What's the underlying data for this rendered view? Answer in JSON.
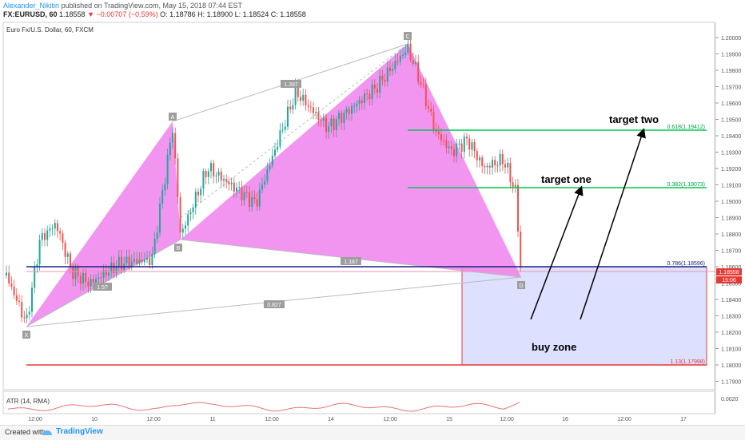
{
  "header": {
    "author": "Alexander_Nikitin",
    "published": "published on TradingView.com, May 15, 2018 07:44 EST",
    "symbol": "FX:EURUSD, 60",
    "last": "1.18558",
    "change": "−0.00707 (−0.59%)",
    "ohlc": "O: 1.18786 H: 1.18900 L: 1.18524 C: 1.18558"
  },
  "pane": {
    "title": "Euro Fx/U.S. Dollar, 60, FXCM",
    "atr_title": "ATR (14, RMA)",
    "atr_axis_label": "0.0020"
  },
  "price_axis": {
    "ticks": [
      "1.20000",
      "1.19900",
      "1.19800",
      "1.19700",
      "1.19600",
      "1.19500",
      "1.19400",
      "1.19300",
      "1.19200",
      "1.19100",
      "1.19000",
      "1.18900",
      "1.18800",
      "1.18700",
      "1.18600",
      "1.18500",
      "1.18400",
      "1.18300",
      "1.18200",
      "1.18100",
      "1.18000",
      "1.17900"
    ],
    "current_price": "1.18558",
    "countdown": "15:06"
  },
  "time_axis": {
    "ticks": [
      "12:00",
      "10",
      "12:00",
      "11",
      "12:00",
      "14",
      "12:00",
      "15",
      "12:00",
      "16",
      "12:00",
      "17"
    ]
  },
  "pattern": {
    "points": {
      "X": "X",
      "A": "A",
      "B": "B",
      "C": "C",
      "D": "D"
    },
    "ratios": {
      "xb": "1.397",
      "ac": "1.5?",
      "bd": "1.187",
      "xd": "0.827"
    }
  },
  "levels": {
    "fib618": "0.618(1.19412)",
    "fib382": "0.382(1.19073)",
    "fib786": "0.786(1.18596)",
    "fib113": "1.13(1.17998)"
  },
  "annotations": {
    "target_two": "target two",
    "target_one": "target one",
    "buy_zone": "buy zone"
  },
  "colors": {
    "pattern_fill": "#ee82ee",
    "bull": "#26a69a",
    "bear": "#ef5350",
    "blue_line": "#1a237e",
    "green_line": "#00c853",
    "red_line": "#e53935",
    "buy_zone_fill": "#dde0ff"
  },
  "footer": {
    "created": "Created with",
    "brand": "TradingView"
  }
}
